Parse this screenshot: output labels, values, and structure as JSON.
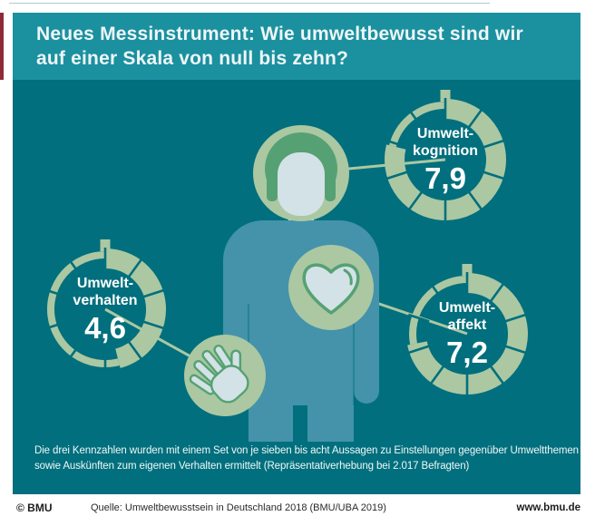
{
  "colors": {
    "header_teal": "#1b909f",
    "body_teal": "#016f7d",
    "sage": "#abc8a2",
    "pale": "#d3e2e7",
    "green": "#55a173",
    "person_blue": "#4493aa",
    "accent_red": "#8e2b38",
    "title_text": "#eef6f7"
  },
  "header": {
    "title_line1": "Neues Messinstrument: Wie umweltbewusst sind wir",
    "title_line2": "auf einer Skala von null bis zehn?"
  },
  "footnote": {
    "line1": "Die drei Kennzahlen wurden mit einem Set von je sieben bis acht Aussagen zu Einstellungen gegenüber Umweltthemen",
    "line2": "sowie Auskünften zum eigenen Verhalten ermittelt (Repräsentativerhebung bei 2.017 Befragten)"
  },
  "bottom_bar": {
    "copyright": "© BMU",
    "source": "Quelle: Umweltbewusstsein in Deutschland 2018 (BMU/UBA 2019)",
    "website": "www.bmu.de"
  },
  "chart_data": {
    "type": "radial-gauges",
    "title": "Neues Messinstrument: Wie umweltbewusst sind wir auf einer Skala von null bis zehn?",
    "scale_min": 0,
    "scale_max": 10,
    "segments": 10,
    "gauges": [
      {
        "name": "Umweltkognition",
        "label_line1": "Umwelt-",
        "label_line2": "kognition",
        "value": 7.9,
        "value_label": "7,9",
        "linked_icon": "head"
      },
      {
        "name": "Umweltverhalten",
        "label_line1": "Umwelt-",
        "label_line2": "verhalten",
        "value": 4.6,
        "value_label": "4,6",
        "linked_icon": "hand"
      },
      {
        "name": "Umweltaffekt",
        "label_line1": "Umwelt-",
        "label_line2": "affekt",
        "value": 7.2,
        "value_label": "7,2",
        "linked_icon": "heart"
      }
    ]
  }
}
